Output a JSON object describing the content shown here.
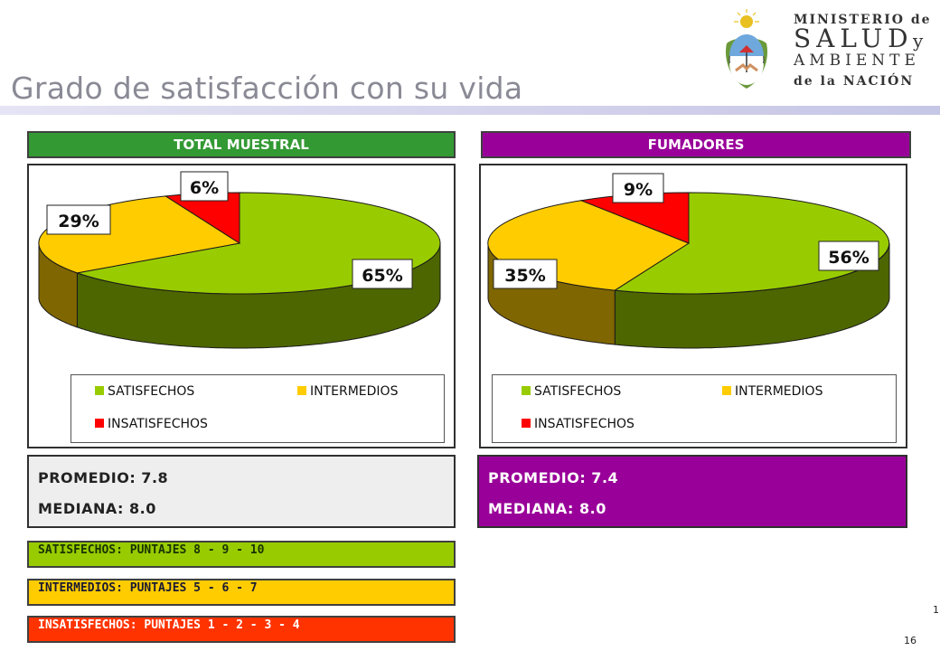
{
  "title": "Grado de satisfacción con su vida",
  "logo": {
    "line1": "MINISTERIO de",
    "line2": "SALUD",
    "line2b": "y",
    "line3": "AMBIENTE",
    "line4": "de la NACIÓN"
  },
  "colors": {
    "satisfechos": "#99cc00",
    "intermedios": "#ffcc00",
    "insatisfechos": "#ff0000",
    "total_header": "#339933",
    "fumadores_header": "#990099",
    "insat_bar": "#ff3300"
  },
  "legend": [
    "SATISFECHOS",
    "INTERMEDIOS",
    "INSATISFECHOS"
  ],
  "chart_data": [
    {
      "type": "pie",
      "title": "TOTAL MUESTRAL",
      "categories": [
        "SATISFECHOS",
        "INTERMEDIOS",
        "INSATISFECHOS"
      ],
      "values": [
        65,
        29,
        6
      ],
      "labels": [
        "65%",
        "29%",
        "6%"
      ],
      "legend_position": "bottom"
    },
    {
      "type": "pie",
      "title": "FUMADORES",
      "categories": [
        "SATISFECHOS",
        "INTERMEDIOS",
        "INSATISFECHOS"
      ],
      "values": [
        56,
        35,
        9
      ],
      "labels": [
        "56%",
        "35%",
        "9%"
      ],
      "legend_position": "bottom"
    }
  ],
  "stats": {
    "total": {
      "promedio": "PROMEDIO: 7.8",
      "mediana": "MEDIANA: 8.0"
    },
    "fumadores": {
      "promedio": "PROMEDIO: 7.4",
      "mediana": "MEDIANA: 8.0"
    }
  },
  "definitions": {
    "satisfechos": "SATISFECHOS: PUNTAJES 8 - 9 - 10",
    "intermedios": "INTERMEDIOS: PUNTAJES 5 - 6 - 7",
    "insatisfechos": "INSATISFECHOS: PUNTAJES 1 - 2 - 3 - 4"
  },
  "page": {
    "marker": "1",
    "number": "16"
  }
}
